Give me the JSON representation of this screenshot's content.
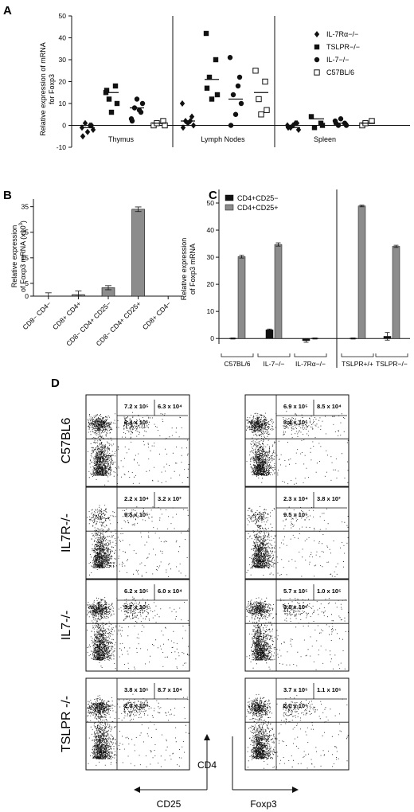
{
  "panels": {
    "a": "A",
    "b": "B",
    "c": "C",
    "d": "D"
  },
  "chart_data": [
    {
      "id": "A",
      "type": "scatter",
      "ylabel": "Relative expression of mRNA for Foxp3",
      "ylim": [
        -10,
        50
      ],
      "yticks": [
        -10,
        0,
        10,
        20,
        30,
        40,
        50
      ],
      "groups": [
        "Thymus",
        "Lymph Nodes",
        "Spleen"
      ],
      "legend_position": "top-right",
      "legend": [
        {
          "name": "IL-7Rα−/−",
          "marker": "diamond"
        },
        {
          "name": "TSLPR−/−",
          "marker": "square"
        },
        {
          "name": "IL-7−/−",
          "marker": "circle"
        },
        {
          "name": "C57BL/6",
          "marker": "open-square"
        }
      ],
      "series": [
        {
          "group": "Thymus",
          "name": "IL-7Rα−/−",
          "values": [
            -1,
            0,
            1,
            -2,
            -3,
            -5,
            0
          ],
          "mean": -1
        },
        {
          "group": "Thymus",
          "name": "TSLPR−/−",
          "values": [
            15,
            18,
            12,
            10,
            6,
            16
          ],
          "mean": 15
        },
        {
          "group": "Thymus",
          "name": "IL-7−/−",
          "values": [
            3,
            6,
            8,
            10,
            12,
            2,
            7
          ],
          "mean": 8
        },
        {
          "group": "Thymus",
          "name": "C57BL/6",
          "values": [
            0,
            2,
            1,
            0
          ],
          "mean": 1
        },
        {
          "group": "Lymph Nodes",
          "name": "IL-7Rα−/−",
          "values": [
            10,
            4,
            2,
            0,
            1,
            -1,
            2
          ],
          "mean": 2
        },
        {
          "group": "Lymph Nodes",
          "name": "TSLPR−/−",
          "values": [
            42,
            30,
            22,
            14,
            12,
            17
          ],
          "mean": 21
        },
        {
          "group": "Lymph Nodes",
          "name": "IL-7−/−",
          "values": [
            31,
            22,
            14,
            10,
            5,
            0,
            18
          ],
          "mean": 12
        },
        {
          "group": "Lymph Nodes",
          "name": "C57BL/6",
          "values": [
            25,
            20,
            12,
            7,
            5
          ],
          "mean": 15
        },
        {
          "group": "Spleen",
          "name": "IL-7Rα−/−",
          "values": [
            0,
            1,
            -1,
            -2,
            0,
            -1,
            1
          ],
          "mean": -1
        },
        {
          "group": "Spleen",
          "name": "TSLPR−/−",
          "values": [
            4,
            1,
            -1,
            0
          ],
          "mean": 3
        },
        {
          "group": "Spleen",
          "name": "IL-7−/−",
          "values": [
            2,
            1,
            0,
            0,
            3,
            1
          ],
          "mean": 1
        },
        {
          "group": "Spleen",
          "name": "C57BL/6",
          "values": [
            0,
            2,
            1
          ],
          "mean": 1
        }
      ]
    },
    {
      "id": "B",
      "type": "bar",
      "ylabel": "Relative expression of Foxp3 mRNA (x10",
      "ylabel_sup": "3",
      "ylabel_end": ")",
      "ylim": [
        0,
        38
      ],
      "yticks": [
        0,
        5,
        15,
        25,
        35
      ],
      "categories": [
        "CD8− CD4−",
        "CD8+ CD4+",
        "CD8− CD4+ CD25−",
        "CD8− CD4+ CD25+",
        "CD8+ CD4−"
      ],
      "values": [
        0.4,
        0.6,
        3.3,
        34,
        0
      ],
      "errors": [
        0.9,
        1.4,
        0.8,
        0.9,
        0
      ]
    },
    {
      "id": "C",
      "type": "bar",
      "ylabel": "Relative expression of Foxp3 mRNA",
      "ylim": [
        -2,
        55
      ],
      "yticks": [
        0,
        10,
        20,
        30,
        40,
        50
      ],
      "legend_position": "top-left",
      "categories": [
        "C57BL/6",
        "IL-7−/−",
        "IL-7Rα−/−",
        "TSLPR+/+",
        "TSLPR−/−"
      ],
      "series": [
        {
          "name": "CD4+CD25−",
          "color": "#111111",
          "values": [
            0,
            3.2,
            -0.8,
            0,
            0.8
          ],
          "errors": [
            0.2,
            0.3,
            0.6,
            0.2,
            1.4
          ]
        },
        {
          "name": "CD4+CD25+",
          "color": "#8c8c8c",
          "values": [
            30.2,
            34.7,
            0,
            48.9,
            34
          ],
          "errors": [
            0.5,
            0.6,
            0.2,
            0.3,
            0.4
          ]
        }
      ]
    }
  ],
  "flow": {
    "genotypes": [
      "C57BL6",
      "IL7R-/-",
      "IL7-/-",
      "TSLPR -/-"
    ],
    "left_quads": [
      {
        "ur": "7.2 x 10⁵",
        "far": "6.3 x 10⁴",
        "ul": "3.4 x 10⁶"
      },
      {
        "ur": "2.2 x 10⁴",
        "far": "3.2 x 10³",
        "ul": "9.5 x 10⁵"
      },
      {
        "ur": "6.2 x 10⁵",
        "far": "6.0 x 10⁴",
        "ul": "3.7 x 10⁶"
      },
      {
        "ur": "3.8 x 10⁵",
        "far": "8.7 x 10⁴",
        "ul": "2.0 x 10⁶"
      }
    ],
    "right_quads": [
      {
        "ur": "6.9 x 10⁵",
        "far": "8.5 x 10⁴",
        "ul": "3.4 x 10⁶"
      },
      {
        "ur": "2.3 x 10⁴",
        "far": "3.8 x 10³",
        "ul": "9.5 x 10⁵"
      },
      {
        "ur": "5.7 x 10⁵",
        "far": "1.0 x 10⁵",
        "ul": "3.8 x 10⁶"
      },
      {
        "ur": "3.7 x 10⁵",
        "far": "1.1 x 10⁵",
        "ul": "2.0 x 10⁶"
      }
    ],
    "axis_cd4": "CD4",
    "axis_cd25": "CD25",
    "axis_foxp3": "Foxp3"
  }
}
